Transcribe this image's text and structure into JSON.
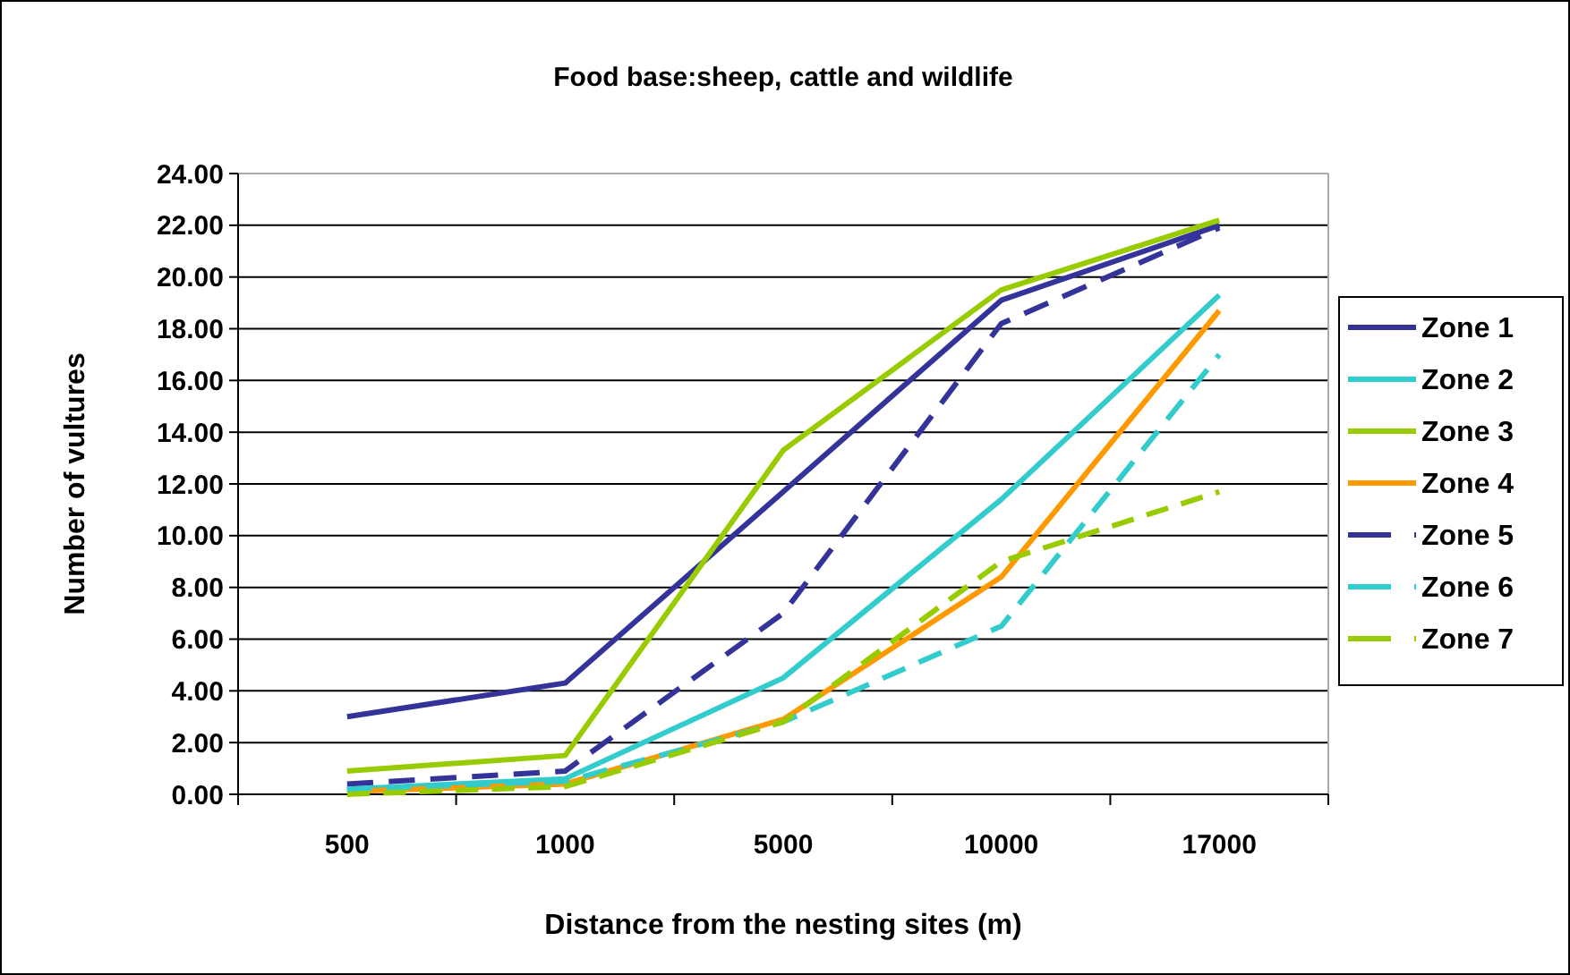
{
  "chart_data": {
    "type": "line",
    "title": "Food base:sheep, cattle and wildlife",
    "xlabel": "Distance from the nesting sites (m)",
    "ylabel": "Number of vultures",
    "categories": [
      "500",
      "1000",
      "5000",
      "10000",
      "17000"
    ],
    "series": [
      {
        "name": "Zone 1",
        "color": "#333399",
        "line_style": "solid",
        "values": [
          3.0,
          4.3,
          11.7,
          19.1,
          22.0
        ]
      },
      {
        "name": "Zone 2",
        "color": "#33cccc",
        "line_style": "solid",
        "values": [
          0.2,
          0.6,
          4.5,
          11.4,
          19.3
        ]
      },
      {
        "name": "Zone 3",
        "color": "#99cc00",
        "line_style": "solid",
        "values": [
          0.9,
          1.5,
          13.3,
          19.5,
          22.2
        ]
      },
      {
        "name": "Zone 4",
        "color": "#ff9900",
        "line_style": "solid",
        "values": [
          0.1,
          0.4,
          2.9,
          8.4,
          18.7
        ]
      },
      {
        "name": "Zone 5",
        "color": "#333399",
        "line_style": "dashed",
        "values": [
          0.4,
          0.9,
          7.0,
          18.2,
          21.9
        ]
      },
      {
        "name": "Zone 6",
        "color": "#33cccc",
        "line_style": "dashed",
        "values": [
          0.2,
          0.5,
          2.8,
          6.5,
          17.0
        ]
      },
      {
        "name": "Zone 7",
        "color": "#99cc00",
        "line_style": "dashed",
        "values": [
          0.0,
          0.3,
          2.8,
          9.0,
          11.7
        ]
      }
    ],
    "ylim": [
      0,
      24
    ],
    "yticks": [
      {
        "value": 0,
        "label": "0.00"
      },
      {
        "value": 2,
        "label": "2.00"
      },
      {
        "value": 4,
        "label": "4.00"
      },
      {
        "value": 6,
        "label": "6.00"
      },
      {
        "value": 8,
        "label": "8.00"
      },
      {
        "value": 10,
        "label": "10.00"
      },
      {
        "value": 12,
        "label": "12.00"
      },
      {
        "value": 14,
        "label": "14.00"
      },
      {
        "value": 16,
        "label": "16.00"
      },
      {
        "value": 18,
        "label": "18.00"
      },
      {
        "value": 20,
        "label": "20.00"
      },
      {
        "value": 22,
        "label": "22.00"
      },
      {
        "value": 24,
        "label": "24.00"
      }
    ],
    "grid": "y",
    "legend": "right",
    "marker": "none"
  }
}
